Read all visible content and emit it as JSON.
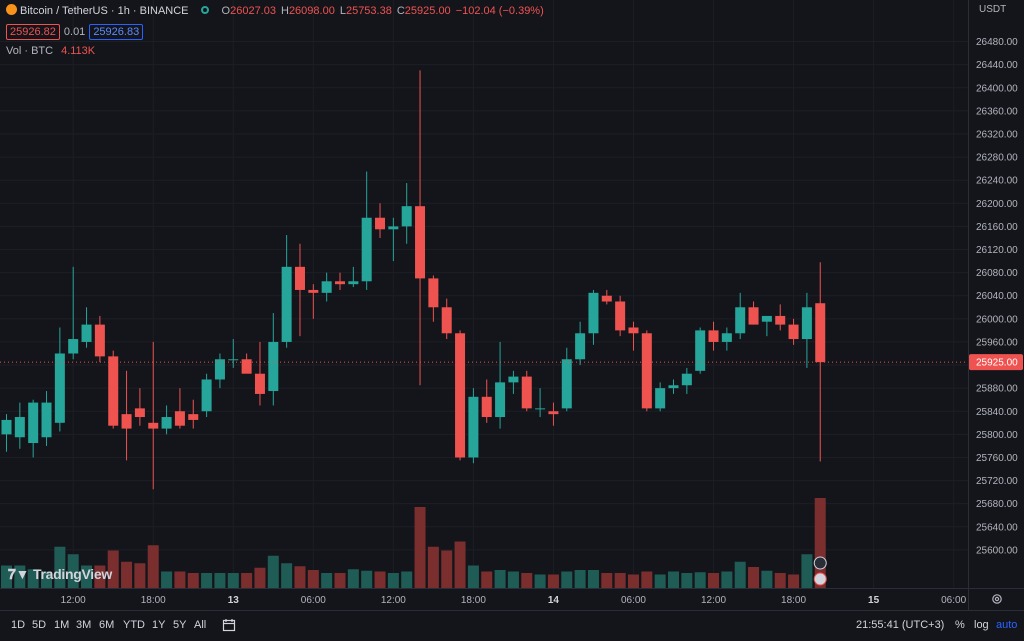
{
  "legend": {
    "symbol": "Bitcoin / TetherUS · 1h · BINANCE",
    "open_label": "O",
    "open": "26027.03",
    "high_label": "H",
    "high": "26098.00",
    "low_label": "L",
    "low": "25753.38",
    "close_label": "C",
    "close": "25925.00",
    "change": "−102.04 (−0.39%)",
    "bid": "25926.82",
    "spread": "0.01",
    "ask": "25926.83",
    "volume_label": "Vol · BTC",
    "volume_value": "4.113K"
  },
  "currency": "USDT",
  "last_price_label": "25925.00",
  "watermark": "TradingView",
  "bottom": {
    "timeframes": [
      "1D",
      "5D",
      "1M",
      "3M",
      "6M",
      "YTD",
      "1Y",
      "5Y",
      "All"
    ],
    "clock": "21:55:41 (UTC+3)",
    "percent": "%",
    "log": "log",
    "auto": "auto"
  },
  "colors": {
    "up": "#26a69a",
    "down": "#ef5350",
    "up_vol": "#1f5c55",
    "down_vol": "#7a2e2e",
    "background": "#14151b",
    "accent": "#2962ff"
  },
  "chart_data": {
    "type": "candlestick",
    "ylim": [
      25560,
      26500
    ],
    "y_ticks": [
      25600,
      25640,
      25680,
      25720,
      25760,
      25800,
      25840,
      25880,
      25920,
      25960,
      26000,
      26040,
      26080,
      26120,
      26160,
      26200,
      26240,
      26280,
      26320,
      26360,
      26400,
      26440,
      26480
    ],
    "x_ticks": [
      {
        "label": "12:00",
        "index": 5,
        "bold": false
      },
      {
        "label": "18:00",
        "index": 11,
        "bold": false
      },
      {
        "label": "13",
        "index": 17,
        "bold": true
      },
      {
        "label": "06:00",
        "index": 23,
        "bold": false
      },
      {
        "label": "12:00",
        "index": 29,
        "bold": false
      },
      {
        "label": "18:00",
        "index": 35,
        "bold": false
      },
      {
        "label": "14",
        "index": 41,
        "bold": true
      },
      {
        "label": "06:00",
        "index": 47,
        "bold": false
      },
      {
        "label": "12:00",
        "index": 53,
        "bold": false
      },
      {
        "label": "18:00",
        "index": 59,
        "bold": false
      },
      {
        "label": "15",
        "index": 65,
        "bold": true
      },
      {
        "label": "06:00",
        "index": 71,
        "bold": false
      }
    ],
    "candles": [
      {
        "o": 25800,
        "h": 25835,
        "l": 25770,
        "c": 25825,
        "v": 30
      },
      {
        "o": 25795,
        "h": 25855,
        "l": 25775,
        "c": 25830,
        "v": 30
      },
      {
        "o": 25785,
        "h": 25860,
        "l": 25760,
        "c": 25855,
        "v": 25
      },
      {
        "o": 25795,
        "h": 25875,
        "l": 25780,
        "c": 25855,
        "v": 22
      },
      {
        "o": 25820,
        "h": 25985,
        "l": 25805,
        "c": 25940,
        "v": 55
      },
      {
        "o": 25940,
        "h": 26090,
        "l": 25930,
        "c": 25965,
        "v": 45
      },
      {
        "o": 25960,
        "h": 26020,
        "l": 25950,
        "c": 25990,
        "v": 30
      },
      {
        "o": 25990,
        "h": 26005,
        "l": 25925,
        "c": 25935,
        "v": 30
      },
      {
        "o": 25935,
        "h": 25945,
        "l": 25810,
        "c": 25815,
        "v": 50
      },
      {
        "o": 25835,
        "h": 25910,
        "l": 25755,
        "c": 25810,
        "v": 35
      },
      {
        "o": 25845,
        "h": 25880,
        "l": 25815,
        "c": 25830,
        "v": 33
      },
      {
        "o": 25820,
        "h": 25960,
        "l": 25705,
        "c": 25810,
        "v": 57
      },
      {
        "o": 25810,
        "h": 25850,
        "l": 25800,
        "c": 25830,
        "v": 22
      },
      {
        "o": 25840,
        "h": 25880,
        "l": 25810,
        "c": 25815,
        "v": 22
      },
      {
        "o": 25835,
        "h": 25860,
        "l": 25810,
        "c": 25825,
        "v": 20
      },
      {
        "o": 25840,
        "h": 25905,
        "l": 25830,
        "c": 25895,
        "v": 20
      },
      {
        "o": 25895,
        "h": 25940,
        "l": 25880,
        "c": 25930,
        "v": 20
      },
      {
        "o": 25930,
        "h": 25965,
        "l": 25915,
        "c": 25930,
        "v": 20
      },
      {
        "o": 25930,
        "h": 25940,
        "l": 25910,
        "c": 25905,
        "v": 20
      },
      {
        "o": 25905,
        "h": 25960,
        "l": 25850,
        "c": 25870,
        "v": 27
      },
      {
        "o": 25875,
        "h": 26010,
        "l": 25850,
        "c": 25960,
        "v": 43
      },
      {
        "o": 25960,
        "h": 26145,
        "l": 25950,
        "c": 26090,
        "v": 33
      },
      {
        "o": 26090,
        "h": 26130,
        "l": 25970,
        "c": 26050,
        "v": 29
      },
      {
        "o": 26050,
        "h": 26060,
        "l": 26000,
        "c": 26045,
        "v": 24
      },
      {
        "o": 26045,
        "h": 26080,
        "l": 26030,
        "c": 26065,
        "v": 20
      },
      {
        "o": 26065,
        "h": 26080,
        "l": 26050,
        "c": 26060,
        "v": 20
      },
      {
        "o": 26060,
        "h": 26090,
        "l": 26055,
        "c": 26065,
        "v": 25
      },
      {
        "o": 26065,
        "h": 26255,
        "l": 26050,
        "c": 26175,
        "v": 23
      },
      {
        "o": 26175,
        "h": 26200,
        "l": 26140,
        "c": 26155,
        "v": 22
      },
      {
        "o": 26155,
        "h": 26175,
        "l": 26100,
        "c": 26160,
        "v": 20
      },
      {
        "o": 26160,
        "h": 26235,
        "l": 26130,
        "c": 26195,
        "v": 22
      },
      {
        "o": 26195,
        "h": 26430,
        "l": 25885,
        "c": 26070,
        "v": 108
      },
      {
        "o": 26070,
        "h": 26075,
        "l": 25995,
        "c": 26020,
        "v": 55
      },
      {
        "o": 26020,
        "h": 26035,
        "l": 25965,
        "c": 25975,
        "v": 50
      },
      {
        "o": 25975,
        "h": 25980,
        "l": 25755,
        "c": 25760,
        "v": 62
      },
      {
        "o": 25760,
        "h": 25880,
        "l": 25750,
        "c": 25865,
        "v": 30
      },
      {
        "o": 25865,
        "h": 25895,
        "l": 25820,
        "c": 25830,
        "v": 22
      },
      {
        "o": 25830,
        "h": 25960,
        "l": 25810,
        "c": 25890,
        "v": 24
      },
      {
        "o": 25890,
        "h": 25910,
        "l": 25870,
        "c": 25900,
        "v": 22
      },
      {
        "o": 25900,
        "h": 25910,
        "l": 25840,
        "c": 25845,
        "v": 20
      },
      {
        "o": 25845,
        "h": 25880,
        "l": 25830,
        "c": 25845,
        "v": 18
      },
      {
        "o": 25840,
        "h": 25855,
        "l": 25815,
        "c": 25835,
        "v": 18
      },
      {
        "o": 25845,
        "h": 25950,
        "l": 25840,
        "c": 25930,
        "v": 22
      },
      {
        "o": 25930,
        "h": 25995,
        "l": 25920,
        "c": 25975,
        "v": 24
      },
      {
        "o": 25975,
        "h": 26050,
        "l": 25955,
        "c": 26045,
        "v": 24
      },
      {
        "o": 26040,
        "h": 26050,
        "l": 26025,
        "c": 26030,
        "v": 20
      },
      {
        "o": 26030,
        "h": 26040,
        "l": 25970,
        "c": 25980,
        "v": 20
      },
      {
        "o": 25985,
        "h": 25995,
        "l": 25945,
        "c": 25975,
        "v": 18
      },
      {
        "o": 25975,
        "h": 25980,
        "l": 25840,
        "c": 25845,
        "v": 22
      },
      {
        "o": 25845,
        "h": 25890,
        "l": 25840,
        "c": 25880,
        "v": 18
      },
      {
        "o": 25880,
        "h": 25895,
        "l": 25870,
        "c": 25885,
        "v": 22
      },
      {
        "o": 25885,
        "h": 25915,
        "l": 25870,
        "c": 25905,
        "v": 20
      },
      {
        "o": 25910,
        "h": 25985,
        "l": 25905,
        "c": 25980,
        "v": 21
      },
      {
        "o": 25980,
        "h": 25995,
        "l": 25945,
        "c": 25960,
        "v": 20
      },
      {
        "o": 25960,
        "h": 25985,
        "l": 25945,
        "c": 25975,
        "v": 22
      },
      {
        "o": 25975,
        "h": 26045,
        "l": 25965,
        "c": 26020,
        "v": 35
      },
      {
        "o": 26020,
        "h": 26030,
        "l": 25990,
        "c": 25990,
        "v": 28
      },
      {
        "o": 25995,
        "h": 26000,
        "l": 25970,
        "c": 26005,
        "v": 23
      },
      {
        "o": 26005,
        "h": 26025,
        "l": 25980,
        "c": 25990,
        "v": 20
      },
      {
        "o": 25990,
        "h": 26000,
        "l": 25955,
        "c": 25965,
        "v": 18
      },
      {
        "o": 25965,
        "h": 26045,
        "l": 25915,
        "c": 26020,
        "v": 45
      },
      {
        "o": 26027,
        "h": 26098,
        "l": 25753,
        "c": 25925,
        "v": 120
      }
    ]
  }
}
